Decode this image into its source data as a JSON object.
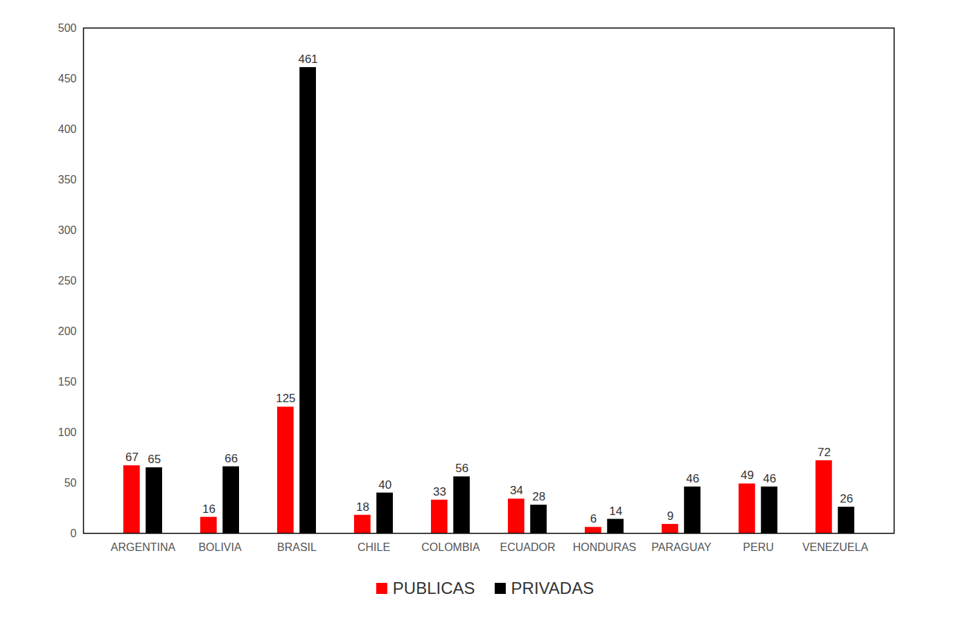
{
  "chart_data": {
    "type": "bar",
    "categories": [
      "ARGENTINA",
      "BOLIVIA",
      "BRASIL",
      "CHILE",
      "COLOMBIA",
      "ECUADOR",
      "HONDURAS",
      "PARAGUAY",
      "PERU",
      "VENEZUELA"
    ],
    "series": [
      {
        "name": "PUBLICAS",
        "color": "#ff0000",
        "values": [
          67,
          16,
          125,
          18,
          33,
          34,
          6,
          9,
          49,
          72
        ]
      },
      {
        "name": "PRIVADAS",
        "color": "#000000",
        "values": [
          65,
          66,
          461,
          40,
          56,
          28,
          14,
          46,
          46,
          26
        ]
      }
    ],
    "ylim": [
      0,
      500
    ],
    "yticks": [
      0,
      50,
      100,
      150,
      200,
      250,
      300,
      350,
      400,
      450,
      500
    ],
    "grid": false,
    "data_labels": true,
    "legend": "bottom"
  }
}
